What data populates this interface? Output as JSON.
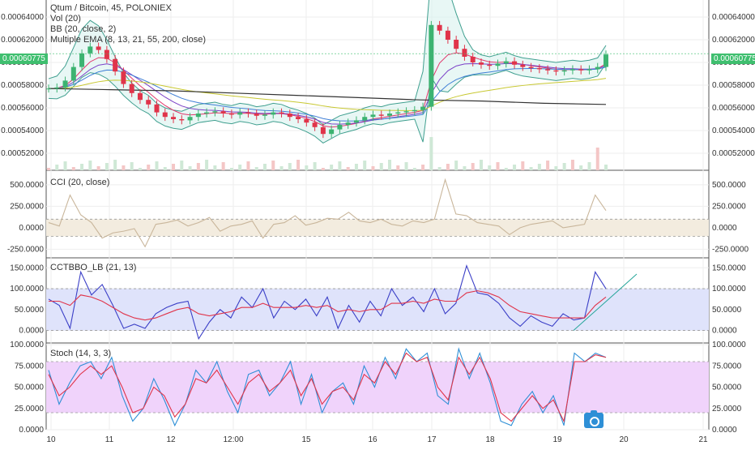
{
  "header": {
    "title": "Qtum / Bitcoin, 45, POLONIEX",
    "indicators": [
      "Vol (20)",
      "BB (20, close, 2)",
      "Multiple EMA (8, 13, 21, 55, 200, close)"
    ]
  },
  "current_price_label": "0.00060775",
  "colors": {
    "up": "#26a69a",
    "down": "#ef5350",
    "up_candle": "#3cb371",
    "down_candle": "#e0344a",
    "bb": "#3f9f8f",
    "bb_fill": "#d9f2ee",
    "ema200": "#333333",
    "cci_line": "#c9b69b",
    "cci_band": "#f3ecdf",
    "cctbbo_line": "#3b3fc7",
    "cctbbo_signal": "#e0344a",
    "cctbbo_band": "#dfe3fb",
    "trend": "#26a69a",
    "stoch_k": "#2e8fd6",
    "stoch_d": "#e0344a",
    "stoch_band": "#f0d3fb"
  },
  "x_axis": {
    "ticks": [
      "10",
      "11",
      "12",
      "12:00",
      "15",
      "16",
      "17",
      "18",
      "19",
      "20",
      "21"
    ]
  },
  "chart_data": [
    {
      "type": "candlestick",
      "name": "price",
      "title": "Qtum / Bitcoin, 45, POLONIEX",
      "ylim": [
        0.000505,
        0.000655
      ],
      "y_ticks": [
        "0.00064000",
        "0.00062000",
        "0.00060000",
        "0.00058000",
        "0.00056000",
        "0.00054000",
        "0.00052000"
      ],
      "y_tick_values": [
        0.00064,
        0.00062,
        0.0006,
        0.00058,
        0.00056,
        0.00054,
        0.00052
      ],
      "current_price": 0.00060775,
      "close": [
        0.000577,
        0.000578,
        0.000584,
        0.000596,
        0.000608,
        0.000614,
        0.000611,
        0.000603,
        0.000592,
        0.000581,
        0.000573,
        0.000567,
        0.000563,
        0.000556,
        0.000552,
        0.00055,
        0.000549,
        0.000552,
        0.000555,
        0.000556,
        0.000557,
        0.000555,
        0.000554,
        0.000556,
        0.000555,
        0.000553,
        0.000554,
        0.000556,
        0.000555,
        0.000552,
        0.00055,
        0.000547,
        0.000543,
        0.000537,
        0.000541,
        0.000545,
        0.000547,
        0.000549,
        0.000552,
        0.000554,
        0.000553,
        0.000555,
        0.000556,
        0.000557,
        0.000558,
        0.000561,
        0.000633,
        0.000628,
        0.00062,
        0.000612,
        0.000605,
        0.0006,
        0.000598,
        0.000597,
        0.000599,
        0.000601,
        0.000598,
        0.000596,
        0.000595,
        0.000594,
        0.000593,
        0.000592,
        0.000593,
        0.000594,
        0.000593,
        0.000594,
        0.000596,
        0.000607
      ],
      "ema200": [
        0.000577,
        0.000576,
        0.000575,
        0.000573,
        0.000571,
        0.000569,
        0.000567,
        0.000566,
        0.000564,
        0.000563
      ],
      "bb_upper_peak": 0.000648,
      "bb_lower_trough": 0.000522
    },
    {
      "type": "line",
      "name": "CCI (20, close)",
      "ylim": [
        -350,
        650
      ],
      "y_ticks": [
        "500.0000",
        "250.0000",
        "0.0000",
        "-250.0000"
      ],
      "y_tick_values": [
        500,
        250,
        0,
        -250
      ],
      "band": [
        -100,
        100
      ],
      "values": [
        60,
        20,
        380,
        150,
        60,
        -120,
        -60,
        -40,
        -10,
        -220,
        40,
        60,
        90,
        20,
        60,
        120,
        -40,
        20,
        40,
        80,
        -120,
        40,
        60,
        140,
        30,
        60,
        110,
        100,
        180,
        80,
        60,
        100,
        40,
        20,
        80,
        60,
        100,
        560,
        160,
        140,
        60,
        40,
        20,
        -80,
        0,
        40,
        60,
        80,
        0,
        20,
        40,
        380,
        200
      ]
    },
    {
      "type": "line",
      "name": "CCTBBO_LB (21, 13)",
      "ylim": [
        -30,
        170
      ],
      "y_ticks": [
        "150.0000",
        "100.0000",
        "50.0000",
        "0.0000"
      ],
      "y_tick_values": [
        150,
        100,
        50,
        0
      ],
      "band": [
        0,
        100
      ],
      "series": [
        {
          "values": [
            75,
            60,
            5,
            140,
            85,
            110,
            60,
            5,
            15,
            5,
            40,
            55,
            65,
            70,
            -20,
            20,
            50,
            30,
            80,
            55,
            100,
            30,
            70,
            50,
            75,
            35,
            80,
            5,
            60,
            20,
            70,
            35,
            100,
            60,
            80,
            45,
            100,
            40,
            65,
            155,
            90,
            85,
            65,
            30,
            10,
            35,
            20,
            10,
            40,
            25,
            30,
            140,
            100
          ]
        },
        {
          "values": [
            70,
            70,
            60,
            85,
            80,
            70,
            55,
            40,
            30,
            25,
            30,
            40,
            50,
            55,
            40,
            35,
            40,
            45,
            55,
            55,
            65,
            55,
            55,
            55,
            60,
            55,
            60,
            45,
            50,
            45,
            50,
            50,
            65,
            65,
            70,
            65,
            75,
            70,
            70,
            90,
            95,
            90,
            80,
            60,
            45,
            40,
            35,
            30,
            30,
            30,
            30,
            60,
            80
          ]
        }
      ],
      "trendline": [
        [
          19.3,
          0
        ],
        [
          20.2,
          135
        ]
      ]
    },
    {
      "type": "line",
      "name": "Stoch (14, 3, 3)",
      "ylim": [
        0,
        100
      ],
      "y_ticks": [
        "100.0000",
        "75.0000",
        "50.0000",
        "25.0000",
        "0.0000"
      ],
      "y_tick_values": [
        100,
        75,
        50,
        25,
        0
      ],
      "band": [
        20,
        80
      ],
      "series": [
        {
          "values": [
            70,
            30,
            55,
            75,
            80,
            60,
            85,
            40,
            10,
            25,
            60,
            35,
            5,
            30,
            70,
            55,
            80,
            45,
            20,
            65,
            70,
            40,
            55,
            80,
            30,
            65,
            20,
            45,
            55,
            30,
            75,
            50,
            85,
            60,
            95,
            80,
            90,
            40,
            30,
            95,
            60,
            90,
            55,
            10,
            5,
            30,
            45,
            20,
            40,
            5,
            90,
            80,
            90,
            85
          ]
        },
        {
          "values": [
            65,
            40,
            50,
            65,
            75,
            65,
            75,
            50,
            20,
            25,
            50,
            40,
            15,
            30,
            60,
            55,
            70,
            50,
            30,
            55,
            65,
            45,
            55,
            70,
            40,
            60,
            30,
            45,
            50,
            35,
            65,
            55,
            80,
            65,
            90,
            80,
            85,
            50,
            35,
            85,
            65,
            85,
            60,
            20,
            10,
            25,
            40,
            25,
            35,
            10,
            80,
            80,
            88,
            85
          ]
        }
      ]
    }
  ]
}
